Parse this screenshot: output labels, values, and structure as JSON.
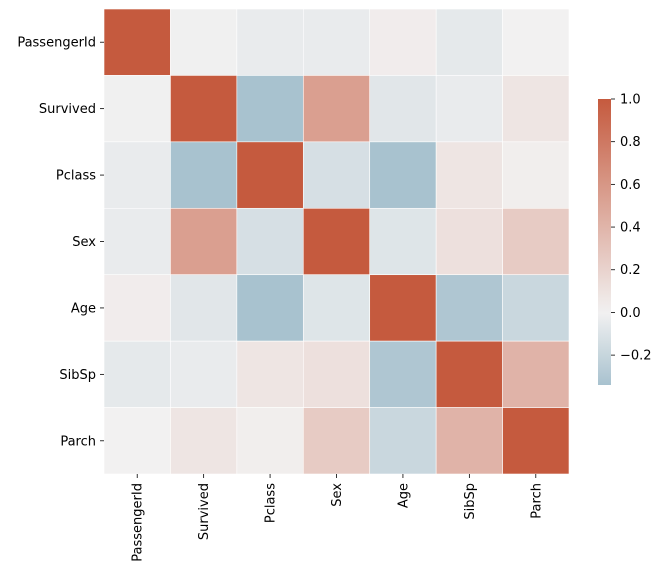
{
  "chart_data": {
    "type": "heatmap",
    "title": "",
    "xlabel": "",
    "ylabel": "",
    "rows": [
      "PassengerId",
      "Survived",
      "Pclass",
      "Sex",
      "Age",
      "SibSp",
      "Parch"
    ],
    "columns": [
      "PassengerId",
      "Survived",
      "Pclass",
      "Sex",
      "Age",
      "SibSp",
      "Parch"
    ],
    "values": [
      [
        1.0,
        -0.01,
        -0.04,
        -0.04,
        0.03,
        -0.06,
        -0.0
      ],
      [
        -0.01,
        1.0,
        -0.34,
        0.54,
        -0.08,
        -0.04,
        0.08
      ],
      [
        -0.04,
        -0.34,
        1.0,
        -0.13,
        -0.37,
        0.08,
        0.02
      ],
      [
        -0.04,
        0.54,
        -0.13,
        1.0,
        -0.09,
        0.11,
        0.25
      ],
      [
        0.03,
        -0.08,
        -0.37,
        -0.09,
        1.0,
        -0.31,
        -0.19
      ],
      [
        -0.06,
        -0.04,
        0.08,
        0.11,
        -0.31,
        1.0,
        0.41
      ],
      [
        -0.0,
        0.08,
        0.02,
        0.25,
        -0.19,
        0.41,
        1.0
      ]
    ],
    "colorbar": {
      "vmin": -0.34,
      "vmax": 1.0,
      "ticks": [
        -0.2,
        0.0,
        0.2,
        0.4,
        0.6,
        0.8,
        1.0
      ],
      "tick_labels": [
        "−0.2",
        "0.0",
        "0.2",
        "0.4",
        "0.6",
        "0.8",
        "1.0"
      ],
      "colors": {
        "low": "#a8c2cf",
        "mid": "#f2f1f1",
        "high": "#c55a3e"
      }
    }
  }
}
